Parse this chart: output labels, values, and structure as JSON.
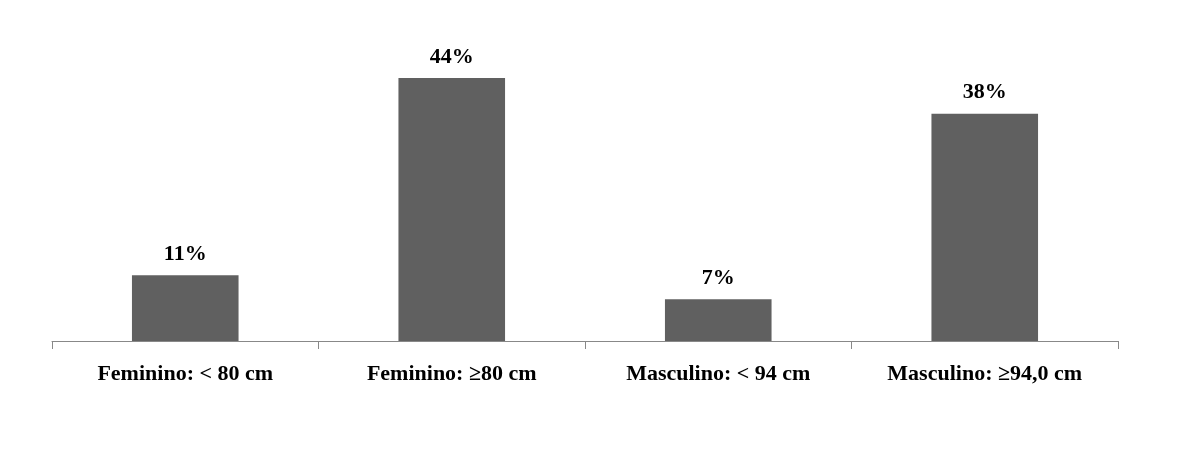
{
  "chart_data": {
    "type": "bar",
    "categories": [
      "Feminino: < 80 cm",
      "Feminino: ≥80 cm",
      "Masculino: < 94 cm",
      "Masculino: ≥94,0 cm"
    ],
    "values": [
      11,
      44,
      7,
      38
    ],
    "value_labels": [
      "11%",
      "44%",
      "7%",
      "38%"
    ],
    "color": "#606060"
  }
}
